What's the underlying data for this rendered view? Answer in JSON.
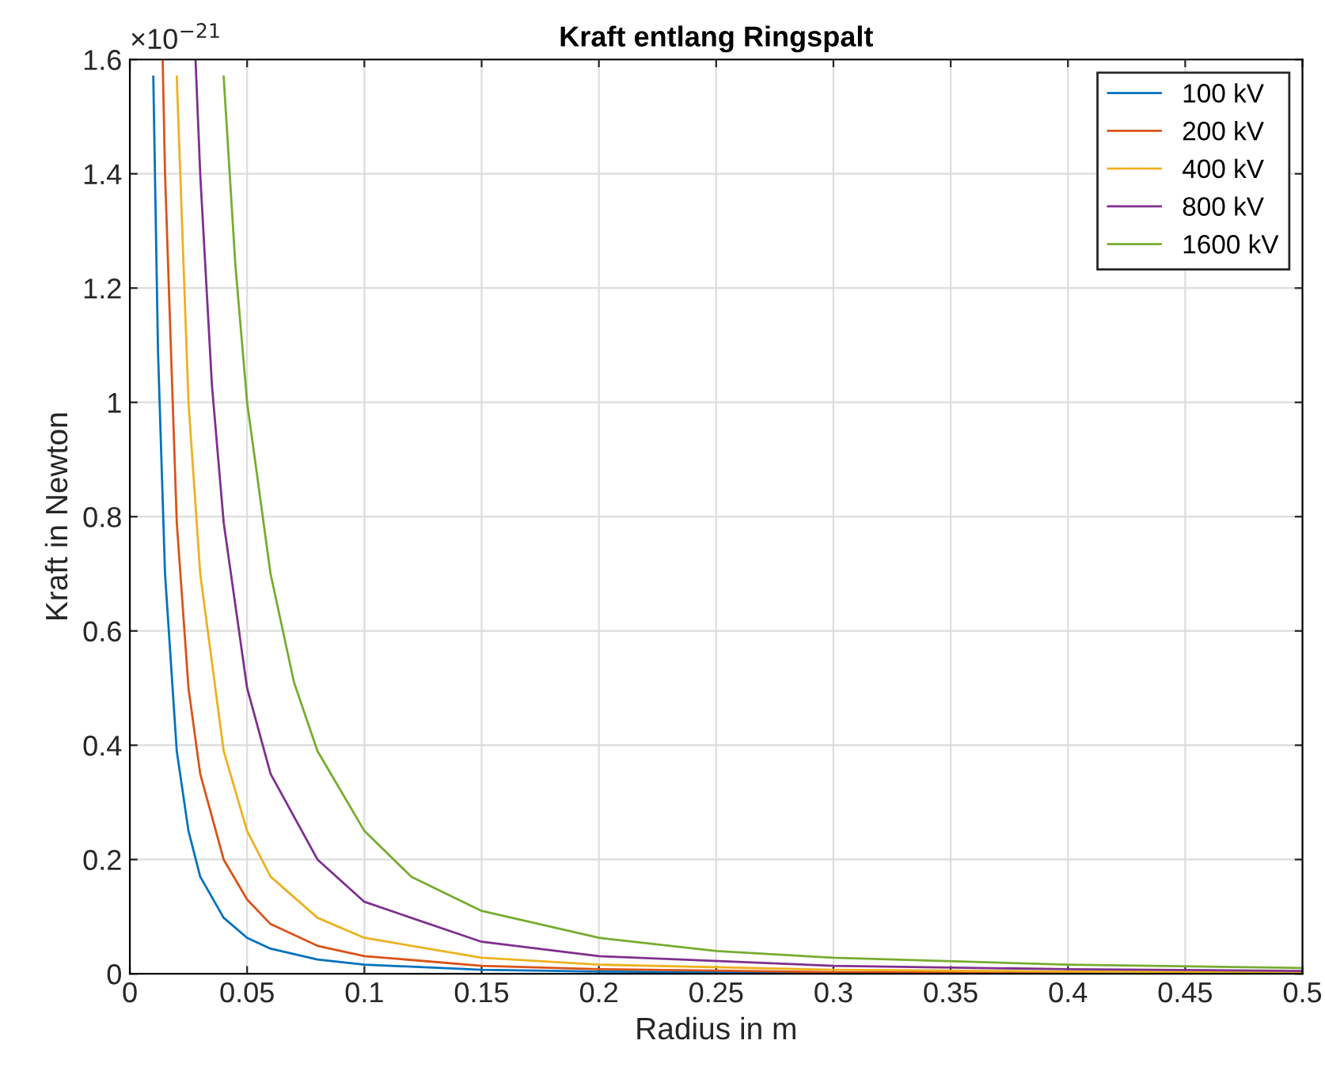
{
  "chart_data": {
    "type": "line",
    "title": "Kraft entlang Ringspalt",
    "xlabel": "Radius in m",
    "ylabel": "Kraft in Newton",
    "annotations": [
      "×10$^{−21}$"
    ],
    "series": [
      {
        "name": "100 kV",
        "color": "#0072bd",
        "x": [
          0.01,
          0.012,
          0.015,
          0.02,
          0.025,
          0.03,
          0.04,
          0.05,
          0.06,
          0.08,
          0.1,
          0.15,
          0.2,
          0.3,
          0.4,
          0.5
        ],
        "values": [
          1.57,
          1.09,
          0.7,
          0.39,
          0.25,
          0.17,
          0.098,
          0.063,
          0.044,
          0.025,
          0.016,
          0.007,
          0.004,
          0.002,
          0.001,
          0.001
        ]
      },
      {
        "name": "200 kV",
        "color": "#d95319",
        "x": [
          0.014,
          0.015,
          0.02,
          0.025,
          0.03,
          0.04,
          0.05,
          0.06,
          0.08,
          0.1,
          0.15,
          0.2,
          0.3,
          0.4,
          0.5
        ],
        "values": [
          1.6,
          1.4,
          0.79,
          0.5,
          0.35,
          0.2,
          0.13,
          0.087,
          0.049,
          0.031,
          0.014,
          0.008,
          0.003,
          0.002,
          0.001
        ]
      },
      {
        "name": "400 kV",
        "color": "#edb120",
        "x": [
          0.02,
          0.025,
          0.03,
          0.04,
          0.05,
          0.06,
          0.08,
          0.1,
          0.15,
          0.2,
          0.3,
          0.4,
          0.5
        ],
        "values": [
          1.57,
          1.0,
          0.7,
          0.39,
          0.25,
          0.17,
          0.098,
          0.063,
          0.028,
          0.016,
          0.007,
          0.004,
          0.003
        ]
      },
      {
        "name": "800 kV",
        "color": "#7e2f8e",
        "x": [
          0.028,
          0.03,
          0.035,
          0.04,
          0.05,
          0.06,
          0.08,
          0.1,
          0.15,
          0.2,
          0.3,
          0.4,
          0.5
        ],
        "values": [
          1.6,
          1.4,
          1.03,
          0.79,
          0.5,
          0.35,
          0.2,
          0.126,
          0.056,
          0.031,
          0.014,
          0.008,
          0.005
        ]
      },
      {
        "name": "1600 kV",
        "color": "#77ac30",
        "x": [
          0.04,
          0.045,
          0.05,
          0.06,
          0.07,
          0.08,
          0.1,
          0.12,
          0.15,
          0.2,
          0.25,
          0.3,
          0.4,
          0.5
        ],
        "values": [
          1.57,
          1.24,
          1.0,
          0.7,
          0.51,
          0.39,
          0.25,
          0.17,
          0.11,
          0.063,
          0.04,
          0.028,
          0.016,
          0.01
        ]
      }
    ],
    "xlim": [
      0,
      0.5
    ],
    "xticks": [
      0,
      0.05,
      0.1,
      0.15,
      0.2,
      0.25,
      0.3,
      0.35,
      0.4,
      0.45,
      0.5
    ],
    "ylim": [
      0,
      1.6
    ],
    "yticks": [
      0,
      0.2,
      0.4,
      0.6,
      0.8,
      1,
      1.2,
      1.4,
      1.6
    ],
    "grid": true,
    "legend": "top right",
    "marker": "none",
    "line_style": "solid"
  }
}
